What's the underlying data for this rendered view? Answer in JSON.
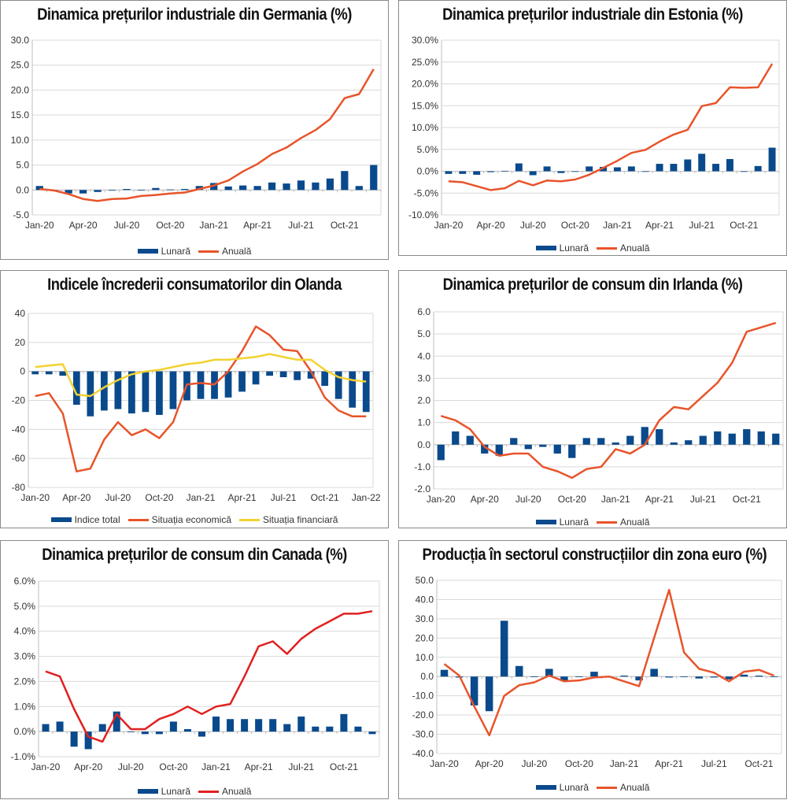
{
  "colors": {
    "bar": "#0a4a8c",
    "line_orange": "#e8542a",
    "line_red": "#e02020",
    "line_yellow": "#f2d230",
    "grid": "#d9d9d9",
    "axis": "#bfbfbf"
  },
  "chart_data": [
    {
      "id": "germany",
      "type": "bar+line",
      "title": "Dinamica prețurilor industriale din Germania (%)",
      "categories": [
        "Jan-20",
        "Feb-20",
        "Mar-20",
        "Apr-20",
        "May-20",
        "Jun-20",
        "Jul-20",
        "Aug-20",
        "Sep-20",
        "Oct-20",
        "Nov-20",
        "Dec-20",
        "Jan-21",
        "Feb-21",
        "Mar-21",
        "Apr-21",
        "May-21",
        "Jun-21",
        "Jul-21",
        "Aug-21",
        "Sep-21",
        "Oct-21",
        "Nov-21",
        "Dec-21"
      ],
      "tick_labels": [
        "Jan-20",
        "Apr-20",
        "Jul-20",
        "Oct-20",
        "Jan-21",
        "Apr-21",
        "Jul-21",
        "Oct-21"
      ],
      "tick_every": 3,
      "ylim": [
        -5,
        30
      ],
      "ystep": 5,
      "yformat": "fixed1",
      "series": [
        {
          "name": "Lunară",
          "kind": "bar",
          "color": "#0a4a8c",
          "values": [
            0.8,
            -0.2,
            -0.7,
            -0.7,
            -0.4,
            0.0,
            0.2,
            0.0,
            0.4,
            0.1,
            0.2,
            0.8,
            1.4,
            0.7,
            0.9,
            0.8,
            1.5,
            1.3,
            1.9,
            1.5,
            2.3,
            3.8,
            0.8,
            5.0
          ]
        },
        {
          "name": "Anuală",
          "kind": "line",
          "color": "#e8542a",
          "values": [
            0.2,
            -0.1,
            -0.8,
            -1.8,
            -2.2,
            -1.8,
            -1.7,
            -1.2,
            -1.0,
            -0.7,
            -0.5,
            0.2,
            0.9,
            1.9,
            3.7,
            5.2,
            7.2,
            8.5,
            10.4,
            12.0,
            14.2,
            18.4,
            19.2,
            24.2
          ]
        }
      ],
      "legend": [
        "Lunară",
        "Anuală"
      ],
      "legend_position": "bottom"
    },
    {
      "id": "estonia",
      "type": "bar+line",
      "title": "Dinamica prețurilor industriale din Estonia (%)",
      "categories": [
        "Jan-20",
        "Feb-20",
        "Mar-20",
        "Apr-20",
        "May-20",
        "Jun-20",
        "Jul-20",
        "Aug-20",
        "Sep-20",
        "Oct-20",
        "Nov-20",
        "Dec-20",
        "Jan-21",
        "Feb-21",
        "Mar-21",
        "Apr-21",
        "May-21",
        "Jun-21",
        "Jul-21",
        "Aug-21",
        "Sep-21",
        "Oct-21",
        "Nov-21",
        "Dec-21"
      ],
      "tick_labels": [
        "Jan-20",
        "Apr-20",
        "Jul-20",
        "Oct-20",
        "Jan-21",
        "Apr-21",
        "Jul-21",
        "Oct-21"
      ],
      "tick_every": 3,
      "ylim": [
        -10,
        30
      ],
      "ystep": 5,
      "yformat": "pct1",
      "series": [
        {
          "name": "Lunară",
          "kind": "bar",
          "color": "#0a4a8c",
          "values": [
            -0.6,
            -0.6,
            -0.8,
            -0.2,
            0.1,
            1.8,
            -0.9,
            1.1,
            -0.4,
            0.0,
            1.1,
            1.0,
            0.9,
            1.1,
            -0.1,
            1.7,
            1.7,
            2.7,
            4.0,
            1.7,
            2.8,
            0.0,
            1.2,
            5.4
          ]
        },
        {
          "name": "Anuală",
          "kind": "line",
          "color": "#e8542a",
          "values": [
            -2.3,
            -2.5,
            -3.4,
            -4.3,
            -3.9,
            -2.2,
            -3.2,
            -2.1,
            -2.3,
            -1.9,
            -0.8,
            0.8,
            2.4,
            4.2,
            4.9,
            6.8,
            8.4,
            9.5,
            14.9,
            15.6,
            19.2,
            19.1,
            19.2,
            24.6
          ]
        }
      ],
      "legend": [
        "Lunară",
        "Anuală"
      ],
      "legend_position": "bottom"
    },
    {
      "id": "netherlands",
      "type": "bar+line",
      "title": "Indicele încrederii consumatorilor din Olanda",
      "categories": [
        "Jan-20",
        "Feb-20",
        "Mar-20",
        "Apr-20",
        "May-20",
        "Jun-20",
        "Jul-20",
        "Aug-20",
        "Sep-20",
        "Oct-20",
        "Nov-20",
        "Dec-20",
        "Jan-21",
        "Feb-21",
        "Mar-21",
        "Apr-21",
        "May-21",
        "Jun-21",
        "Jul-21",
        "Aug-21",
        "Sep-21",
        "Oct-21",
        "Nov-21",
        "Dec-21",
        "Jan-22"
      ],
      "tick_labels": [
        "Jan-20",
        "Apr-20",
        "Jul-20",
        "Oct-20",
        "Jan-21",
        "Apr-21",
        "Jul-21",
        "Oct-21",
        "Jan-22"
      ],
      "tick_every": 3,
      "ylim": [
        -80,
        40
      ],
      "ystep": 20,
      "yformat": "int",
      "series": [
        {
          "name": "Indice total",
          "kind": "bar",
          "color": "#0a4a8c",
          "values": [
            -2,
            -2,
            -3,
            -23,
            -31,
            -27,
            -26,
            -29,
            -28,
            -30,
            -26,
            -20,
            -19,
            -19,
            -18,
            -14,
            -9,
            -3,
            -4,
            -6,
            -5,
            -10,
            -19,
            -25,
            -28
          ]
        },
        {
          "name": "Situația economică",
          "kind": "line",
          "color": "#e8542a",
          "values": [
            -17,
            -15,
            -29,
            -69,
            -67,
            -47,
            -35,
            -44,
            -40,
            -46,
            -35,
            -9,
            -8,
            -9,
            0,
            14,
            31,
            25,
            15,
            14,
            0,
            -18,
            -27,
            -31,
            -31
          ]
        },
        {
          "name": "Situația financiară",
          "kind": "line",
          "color": "#f2d230",
          "values": [
            3,
            4,
            5,
            -16,
            -17,
            -11,
            -6,
            -2,
            0,
            1,
            3,
            5,
            6,
            8,
            8,
            9,
            10,
            12,
            10,
            8,
            8,
            1,
            -4,
            -6,
            -7
          ]
        }
      ],
      "legend": [
        "Indice total",
        "Situația economică",
        "Situația financiară"
      ],
      "legend_position": "bottom"
    },
    {
      "id": "ireland",
      "type": "bar+line",
      "title": "Dinamica prețurilor de consum din Irlanda (%)",
      "categories": [
        "Jan-20",
        "Feb-20",
        "Mar-20",
        "Apr-20",
        "May-20",
        "Jun-20",
        "Jul-20",
        "Aug-20",
        "Sep-20",
        "Oct-20",
        "Nov-20",
        "Dec-20",
        "Jan-21",
        "Feb-21",
        "Mar-21",
        "Apr-21",
        "May-21",
        "Jun-21",
        "Jul-21",
        "Aug-21",
        "Sep-21",
        "Oct-21",
        "Nov-21",
        "Dec-21"
      ],
      "tick_labels": [
        "Jan-20",
        "Apr-20",
        "Jul-20",
        "Oct-20",
        "Jan-21",
        "Apr-21",
        "Jul-21",
        "Oct-21"
      ],
      "tick_every": 3,
      "ylim": [
        -2,
        6
      ],
      "ystep": 1,
      "yformat": "fixed1",
      "series": [
        {
          "name": "Lunară",
          "kind": "bar",
          "color": "#0a4a8c",
          "values": [
            -0.7,
            0.6,
            0.4,
            -0.4,
            -0.5,
            0.3,
            -0.2,
            -0.1,
            -0.4,
            -0.6,
            0.3,
            0.3,
            0.1,
            0.4,
            0.8,
            0.7,
            0.1,
            0.2,
            0.4,
            0.6,
            0.5,
            0.7,
            0.6,
            0.5
          ]
        },
        {
          "name": "Anuală",
          "kind": "line",
          "color": "#e8542a",
          "values": [
            1.3,
            1.1,
            0.7,
            -0.1,
            -0.5,
            -0.4,
            -0.4,
            -1.0,
            -1.2,
            -1.5,
            -1.1,
            -1.0,
            -0.2,
            -0.4,
            0.0,
            1.1,
            1.7,
            1.6,
            2.2,
            2.8,
            3.7,
            5.1,
            5.3,
            5.5
          ]
        }
      ],
      "legend": [
        "Lunară",
        "Anuală"
      ],
      "legend_position": "bottom"
    },
    {
      "id": "canada",
      "type": "bar+line",
      "title": "Dinamica prețurilor de consum din Canada (%)",
      "categories": [
        "Jan-20",
        "Feb-20",
        "Mar-20",
        "Apr-20",
        "May-20",
        "Jun-20",
        "Jul-20",
        "Aug-20",
        "Sep-20",
        "Oct-20",
        "Nov-20",
        "Dec-20",
        "Jan-21",
        "Feb-21",
        "Mar-21",
        "Apr-21",
        "May-21",
        "Jun-21",
        "Jul-21",
        "Aug-21",
        "Sep-21",
        "Oct-21",
        "Nov-21",
        "Dec-21"
      ],
      "tick_labels": [
        "Jan-20",
        "Apr-20",
        "Jul-20",
        "Oct-20",
        "Jan-21",
        "Apr-21",
        "Jul-21",
        "Oct-21"
      ],
      "tick_every": 3,
      "ylim": [
        -1,
        6
      ],
      "ystep": 1,
      "yformat": "pct1",
      "series": [
        {
          "name": "Lunară",
          "kind": "bar",
          "color": "#0a4a8c",
          "values": [
            0.3,
            0.4,
            -0.6,
            -0.7,
            0.3,
            0.8,
            0.0,
            -0.1,
            -0.1,
            0.4,
            0.1,
            -0.2,
            0.6,
            0.5,
            0.5,
            0.5,
            0.5,
            0.3,
            0.6,
            0.2,
            0.2,
            0.7,
            0.2,
            -0.1
          ]
        },
        {
          "name": "Anuală",
          "kind": "line",
          "color": "#e02020",
          "values": [
            2.4,
            2.2,
            0.9,
            -0.2,
            -0.4,
            0.7,
            0.1,
            0.1,
            0.5,
            0.7,
            1.0,
            0.7,
            1.0,
            1.1,
            2.2,
            3.4,
            3.6,
            3.1,
            3.7,
            4.1,
            4.4,
            4.7,
            4.7,
            4.8
          ]
        }
      ],
      "legend": [
        "Lunară",
        "Anuală"
      ],
      "legend_position": "bottom"
    },
    {
      "id": "eurozone",
      "type": "bar+line",
      "title": "Producția în sectorul construcțiilor din zona euro (%)",
      "categories": [
        "Jan-20",
        "Feb-20",
        "Mar-20",
        "Apr-20",
        "May-20",
        "Jun-20",
        "Jul-20",
        "Aug-20",
        "Sep-20",
        "Oct-20",
        "Nov-20",
        "Dec-20",
        "Jan-21",
        "Feb-21",
        "Mar-21",
        "Apr-21",
        "May-21",
        "Jun-21",
        "Jul-21",
        "Aug-21",
        "Sep-21",
        "Oct-21",
        "Nov-21"
      ],
      "tick_labels": [
        "Jan-20",
        "Apr-20",
        "Jul-20",
        "Oct-20",
        "Jan-21",
        "Apr-21",
        "Jul-21",
        "Oct-21"
      ],
      "tick_every": 3,
      "ylim": [
        -40,
        50
      ],
      "ystep": 10,
      "yformat": "fixed1",
      "series": [
        {
          "name": "Lunară",
          "kind": "bar",
          "color": "#0a4a8c",
          "values": [
            3.5,
            -0.5,
            -15.0,
            -18.0,
            29.0,
            5.5,
            0.0,
            4.0,
            -2.0,
            0.0,
            2.5,
            0.0,
            0.5,
            -2.0,
            4.0,
            -0.5,
            0.0,
            -1.0,
            -0.5,
            -1.5,
            1.0,
            0.5,
            0.0
          ]
        },
        {
          "name": "Anuală",
          "kind": "line",
          "color": "#e8542a",
          "values": [
            6.5,
            0.5,
            -15.5,
            -30.5,
            -10.0,
            -4.5,
            -3.0,
            0.5,
            -2.5,
            -2.0,
            -0.5,
            0.0,
            -2.5,
            -5.0,
            20.0,
            45.0,
            12.5,
            4.0,
            2.0,
            -2.5,
            2.5,
            3.5,
            0.5
          ]
        }
      ],
      "legend": [
        "Lunară",
        "Anuală"
      ],
      "legend_position": "bottom"
    }
  ]
}
